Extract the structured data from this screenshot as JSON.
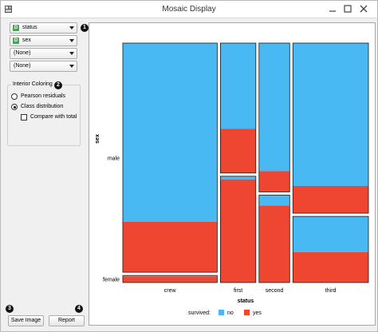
{
  "window": {
    "title": "Mosaic Display"
  },
  "controls": {
    "variables": [
      {
        "label": "status",
        "icon": "discrete-variable-icon",
        "icon_letter": "D"
      },
      {
        "label": "sex",
        "icon": "discrete-variable-icon",
        "icon_letter": "D"
      },
      {
        "label": "(None)",
        "icon": null,
        "icon_letter": ""
      },
      {
        "label": "(None)",
        "icon": null,
        "icon_letter": ""
      }
    ],
    "badges": {
      "variables": "1",
      "coloring": "2",
      "save": "3",
      "report": "4"
    },
    "interior_coloring": {
      "title": "Interior Coloring",
      "pearson_label": "Pearson residuals",
      "class_label": "Class distribution",
      "compare_label": "Compare with total",
      "selected": "class"
    },
    "save_label": "Save Image",
    "report_label": "Report"
  },
  "chart_data": {
    "type": "mosaic",
    "xlabel": "status",
    "ylabel": "sex",
    "categories": [
      "crew",
      "first",
      "second",
      "third"
    ],
    "column_widths": [
      0.4,
      0.15,
      0.13,
      0.32
    ],
    "rows": [
      "male",
      "female"
    ],
    "legend": {
      "title": "survived:",
      "items": [
        {
          "name": "no",
          "color": "#48b9f3"
        },
        {
          "name": "yes",
          "color": "#ee4630"
        }
      ],
      "placement": "bottom"
    },
    "cells": [
      {
        "status": "crew",
        "sex": "male",
        "share": 0.97,
        "survived_yes": 0.22
      },
      {
        "status": "crew",
        "sex": "female",
        "share": 0.03,
        "survived_yes": 0.87
      },
      {
        "status": "first",
        "sex": "male",
        "share": 0.55,
        "survived_yes": 0.34
      },
      {
        "status": "first",
        "sex": "female",
        "share": 0.45,
        "survived_yes": 0.97
      },
      {
        "status": "second",
        "sex": "male",
        "share": 0.63,
        "survived_yes": 0.14
      },
      {
        "status": "second",
        "sex": "female",
        "share": 0.37,
        "survived_yes": 0.88
      },
      {
        "status": "third",
        "sex": "male",
        "share": 0.72,
        "survived_yes": 0.16
      },
      {
        "status": "third",
        "sex": "female",
        "share": 0.28,
        "survived_yes": 0.46
      }
    ]
  }
}
